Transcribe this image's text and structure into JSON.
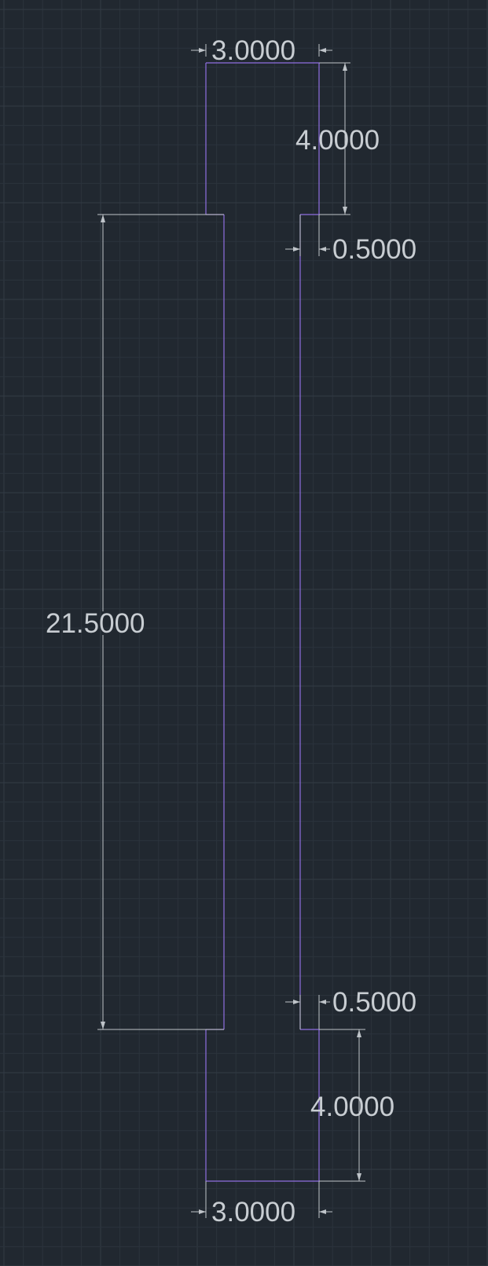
{
  "drawing": {
    "background_color": "#212830",
    "part_color": "#8f6ee0",
    "dimension_color": "#c8cdd2",
    "dimensions": {
      "top_width": "3.0000",
      "top_height": "4.0000",
      "top_step": "0.5000",
      "body_height": "21.5000",
      "bottom_step": "0.5000",
      "bottom_height": "4.0000",
      "bottom_width": "3.0000"
    }
  }
}
